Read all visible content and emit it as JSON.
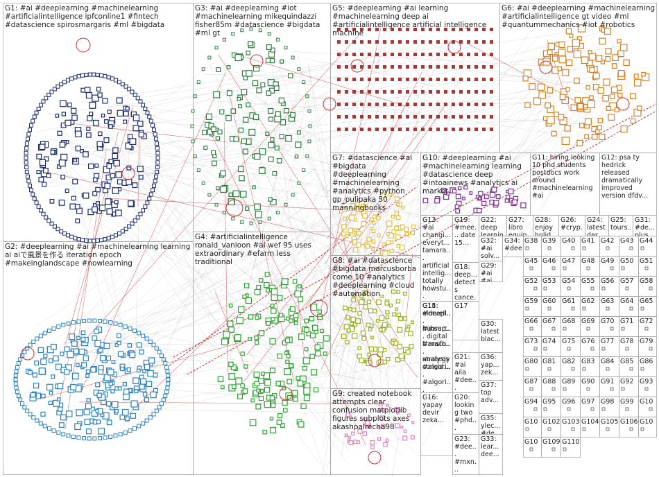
{
  "groups": [
    {
      "id": "G1",
      "text": "G1: #ai #deeplearning #machinelearning #artificialintelligence ipfconline1 #fintech #datascience spirosmargaris #ml #bigdata",
      "color": "#1a2a6c"
    },
    {
      "id": "G2",
      "text": "G2: #deeplearning #ai #machinelearning learning ai aiで風景を作る iteration epoch #makeinglandscape #nowlearning",
      "color": "#2a80c0"
    },
    {
      "id": "G3",
      "text": "G3: #ai #deeplearning #iot #machinelearning mikequindazzi fisher85m #datascience #bigdata #ml gt",
      "color": "#2e7d3e"
    },
    {
      "id": "G4",
      "text": "G4: #artificialintelligence ronald_vanloon #ai wef 95 uses extraordinary #efarm less traditional",
      "color": "#2ea032"
    },
    {
      "id": "G5",
      "text": "G5: #deeplearning #ai learning #machinelearning deep ai #artificialintelligence artificial intelligence machine",
      "color": "#8b1a1a"
    },
    {
      "id": "G6",
      "text": "G6: #ai #deeplearning #machinelearning #artificialintelligence gt video #ml #quantummechanics #iot #robotics",
      "color": "#d88020"
    },
    {
      "id": "G7",
      "text": "G7: #datascience #ai #bigdata #deeplearning #machinelearning #analytics #python gp_pulipaka 50 manningbooks",
      "color": "#e0c040"
    },
    {
      "id": "G8",
      "text": "G8: #ai #datascience #bigdata marcusborba come 10 #analytics #deeplearning #cloud #automation",
      "color": "#9ab020"
    },
    {
      "id": "G9",
      "text": "G9: created notebook attempts clear confusion matplotlib figures subplots axes akashpalrecha98",
      "color": "#e080c0"
    },
    {
      "id": "G10",
      "text": "G10: #deeplearning #ai #machinelearning learning #datascience deep #intoainews #analytics ai market",
      "color": "#7a3090"
    },
    {
      "id": "G11",
      "text": "G11: hiring looking 10 phd students postdocs work around #machinelearning #ai",
      "color": "#606060"
    },
    {
      "id": "G12",
      "text": "G12: psa ty hedrick released dramatically improved version dfdv...",
      "color": "#606060"
    },
    {
      "id": "G13",
      "text": "G13: #ai changi... everyt... tamara... artificial intellig... totally howstu...",
      "color": "#606060"
    },
    {
      "id": "G14",
      "text": "G14: #deepl... hubrep... #mach... analysis #algori... #algori...",
      "color": "#606060"
    },
    {
      "id": "G15",
      "text": "G15: elmuell... #insurt... digital transfo... strategy consid...",
      "color": "#606060"
    },
    {
      "id": "G16",
      "text": "G16: yapay devir zeka...",
      "color": "#606060"
    },
    {
      "id": "G17",
      "text": "G17",
      "color": "#606060"
    },
    {
      "id": "G18",
      "text": "G18: deep... detects cance...",
      "color": "#606060"
    },
    {
      "id": "G19",
      "text": "G19: #mee... date 15...",
      "color": "#606060"
    },
    {
      "id": "G20",
      "text": "G20: looking two #phd...",
      "color": "#606060"
    },
    {
      "id": "G21",
      "text": "G21: #ai aila #dee... youtu...",
      "color": "#606060"
    },
    {
      "id": "G22",
      "text": "G22: deep learnin...",
      "color": "#606060"
    },
    {
      "id": "G23",
      "text": "G23: #dee... #mxn...",
      "color": "#606060"
    },
    {
      "id": "G24",
      "text": "G24: latest dar...",
      "color": "#606060"
    },
    {
      "id": "G25",
      "text": "G25: tours...",
      "color": "#606060"
    },
    {
      "id": "G26",
      "text": "G26: #cryp... #limit...",
      "color": "#606060"
    },
    {
      "id": "G27",
      "text": "G27: libro equip...",
      "color": "#606060"
    },
    {
      "id": "G28",
      "text": "G28: enjoy holid...",
      "color": "#606060"
    },
    {
      "id": "G29",
      "text": "G29: #ai #ai artifi...",
      "color": "#606060"
    },
    {
      "id": "G30",
      "text": "G30: latest blac...",
      "color": "#606060"
    },
    {
      "id": "G31",
      "text": "G31: #de... plus...",
      "color": "#606060"
    },
    {
      "id": "G32",
      "text": "G32: #ai solv...",
      "color": "#606060"
    },
    {
      "id": "G33",
      "text": "G33: lear... dee...",
      "color": "#606060"
    },
    {
      "id": "G34",
      "text": "G34: #dee...",
      "color": "#606060"
    },
    {
      "id": "G35",
      "text": "G35: ylec... #de...",
      "color": "#606060"
    },
    {
      "id": "G36",
      "text": "G36: yap... zek...",
      "color": "#606060"
    },
    {
      "id": "G37",
      "text": "G37: top adv...",
      "color": "#606060"
    }
  ],
  "minor_labels": [
    "G38",
    "G39",
    "G40",
    "G41",
    "G42",
    "G43",
    "G44",
    "G45",
    "G46",
    "G47",
    "G48",
    "G49",
    "G50",
    "G51",
    "G52",
    "G53",
    "G54",
    "G55",
    "G56",
    "G57",
    "G58",
    "G59",
    "G60",
    "G61",
    "G62",
    "G63",
    "G64",
    "G65",
    "G66",
    "G67",
    "G68",
    "G69",
    "G70",
    "G71",
    "G72",
    "G73",
    "G74",
    "G75",
    "G76",
    "G77",
    "G78",
    "G79",
    "G80",
    "G81",
    "G82",
    "G83",
    "G84",
    "G85",
    "G86",
    "G87",
    "G88",
    "G89",
    "G90",
    "G91",
    "G92",
    "G93",
    "G94",
    "G95",
    "G96",
    "G97",
    "G98",
    "G99",
    "G100",
    "G101",
    "G102",
    "G103",
    "G104",
    "G105",
    "G106",
    "G107",
    "G108",
    "G109",
    "G110"
  ],
  "colors": {
    "edge": "#a0a0a0",
    "edge_red": "#c83030",
    "box_border": "#a8a8a8",
    "background": "#ffffff"
  }
}
